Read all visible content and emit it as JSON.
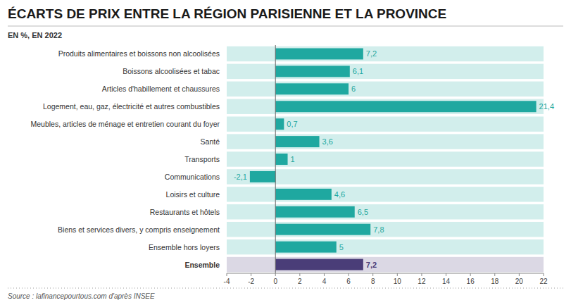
{
  "chart_data": {
    "type": "bar",
    "orientation": "horizontal",
    "title": "ÉCARTS DE PRIX ENTRE LA RÉGION PARISIENNE ET LA PROVINCE",
    "subtitle": "EN %, EN 2022",
    "categories": [
      "Produits alimentaires et boissons non alcoolisées",
      "Boissons alcoolisées et tabac",
      "Articles d'habillement et chaussures",
      "Logement, eau, gaz, électricité et autres combustibles",
      "Meubles, articles de ménage et entretien courant du foyer",
      "Santé",
      "Transports",
      "Communications",
      "Loisirs et culture",
      "Restaurants et hôtels",
      "Biens et services divers, y compris enseignement",
      "Ensemble hors loyers",
      "Ensemble"
    ],
    "values": [
      7.2,
      6.1,
      6.0,
      21.4,
      0.7,
      3.6,
      1.0,
      -2.1,
      4.6,
      6.5,
      7.8,
      5.0,
      7.2
    ],
    "value_labels": [
      "7,2",
      "6,1",
      "6",
      "21,4",
      "0,7",
      "3,6",
      "1",
      "-2,1",
      "4,6",
      "6,5",
      "7,8",
      "5",
      "7,2"
    ],
    "data_labels": true,
    "colors": [
      "#1fa8a0",
      "#1fa8a0",
      "#1fa8a0",
      "#1fa8a0",
      "#1fa8a0",
      "#1fa8a0",
      "#1fa8a0",
      "#1fa8a0",
      "#1fa8a0",
      "#1fa8a0",
      "#1fa8a0",
      "#1fa8a0",
      "#4a3d78"
    ],
    "xlim": [
      -4,
      22
    ],
    "xticks": [
      -4,
      -2,
      0,
      2,
      4,
      6,
      8,
      10,
      12,
      14,
      16,
      18,
      20,
      22
    ],
    "grid": false,
    "annotations": [
      "Source : lafinancepourtous.com d'après INSEE"
    ]
  }
}
